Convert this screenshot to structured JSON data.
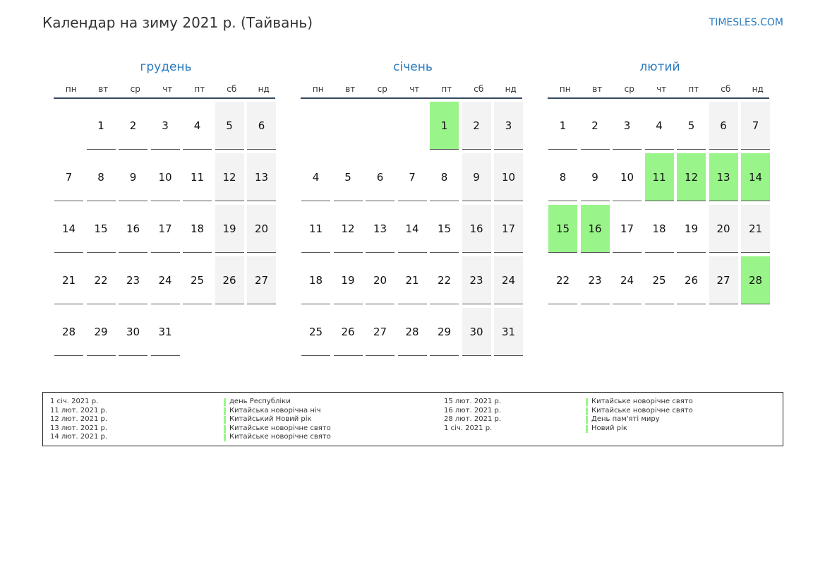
{
  "header": {
    "title": "Календар на зиму 2021 р. (Тайвань)",
    "site": "TIMESLES.COM"
  },
  "colors": {
    "accent": "#2a7bbf",
    "holiday": "#99f589",
    "weekend": "#f3f3f3"
  },
  "weekday_labels": [
    "пн",
    "вт",
    "ср",
    "чт",
    "пт",
    "сб",
    "нд"
  ],
  "months": [
    {
      "name": "грудень",
      "first_weekday": 2,
      "days_in_month": 31,
      "holidays": []
    },
    {
      "name": "січень",
      "first_weekday": 5,
      "days_in_month": 31,
      "holidays": [
        1
      ]
    },
    {
      "name": "лютий",
      "first_weekday": 1,
      "days_in_month": 28,
      "holidays": [
        11,
        12,
        13,
        14,
        15,
        16,
        28
      ]
    }
  ],
  "legend": {
    "left": [
      {
        "date": "1 січ. 2021 р.",
        "name": "день Республіки"
      },
      {
        "date": "11 лют. 2021 р.",
        "name": "Китайська новорічна ніч"
      },
      {
        "date": "12 лют. 2021 р.",
        "name": "Китайський Новий рік"
      },
      {
        "date": "13 лют. 2021 р.",
        "name": "Китайське новорічне свято"
      },
      {
        "date": "14 лют. 2021 р.",
        "name": "Китайське новорічне свято"
      }
    ],
    "right": [
      {
        "date": "15 лют. 2021 р.",
        "name": "Китайське новорічне свято"
      },
      {
        "date": "16 лют. 2021 р.",
        "name": "Китайське новорічне свято"
      },
      {
        "date": "28 лют. 2021 р.",
        "name": "День пам'яті миру"
      },
      {
        "date": "1 січ. 2021 р.",
        "name": "Новий рік"
      }
    ]
  }
}
